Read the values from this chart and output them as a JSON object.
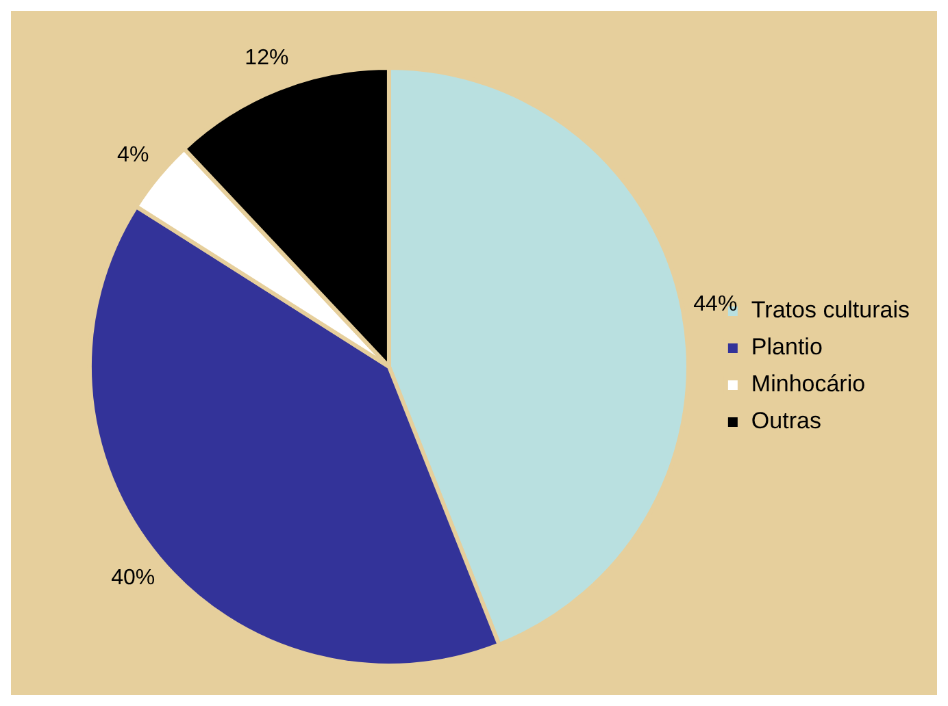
{
  "chart_data": {
    "type": "pie",
    "categories": [
      "Tratos culturais",
      "Plantio",
      "Minhocário",
      "Outras"
    ],
    "values": [
      44,
      40,
      4,
      12
    ],
    "colors": [
      "#b9e0e0",
      "#333399",
      "#ffffff",
      "#000000"
    ],
    "value_labels": [
      "44%",
      "40%",
      "4%",
      "12%"
    ],
    "legend": "right"
  }
}
